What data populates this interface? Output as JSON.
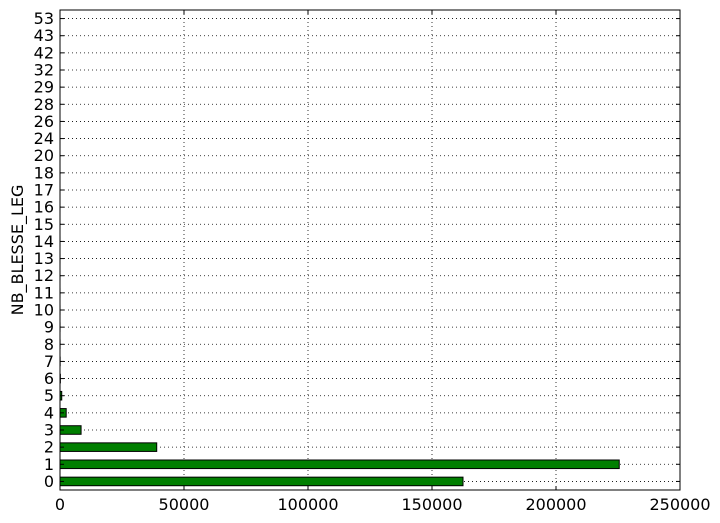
{
  "chart_data": {
    "type": "bar",
    "orientation": "horizontal",
    "ylabel": "NB_BLESSE_LEG",
    "xlabel": "",
    "title": "",
    "categories": [
      "0",
      "1",
      "2",
      "3",
      "4",
      "5",
      "6",
      "7",
      "8",
      "9",
      "10",
      "11",
      "12",
      "13",
      "14",
      "15",
      "16",
      "17",
      "18",
      "20",
      "24",
      "26",
      "28",
      "29",
      "32",
      "42",
      "43",
      "53"
    ],
    "values": [
      162500,
      225500,
      39000,
      8500,
      2500,
      700,
      150,
      60,
      30,
      20,
      12,
      8,
      6,
      5,
      4,
      3,
      2,
      2,
      1,
      1,
      1,
      1,
      1,
      1,
      1,
      1,
      1,
      1
    ],
    "xlim": [
      0,
      250000
    ],
    "xticks": [
      "0",
      "50000",
      "100000",
      "150000",
      "200000",
      "250000"
    ],
    "grid": true,
    "bar_color": "#007f00",
    "legend": "none"
  }
}
